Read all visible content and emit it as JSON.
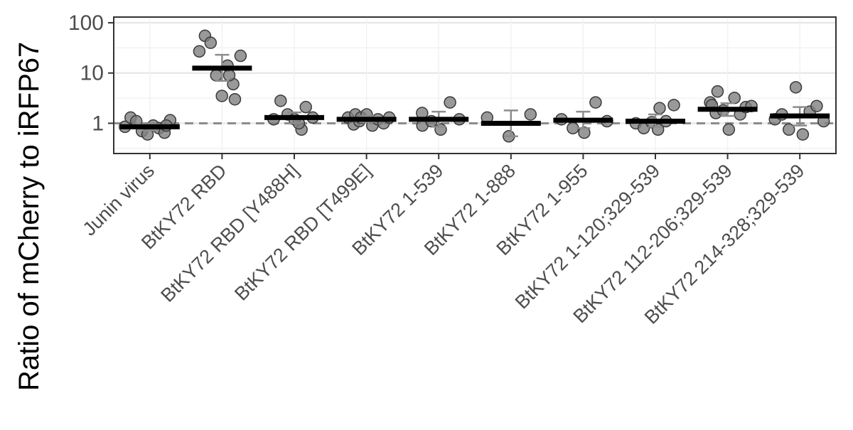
{
  "chart_data": {
    "type": "scatter",
    "title": "",
    "xlabel": "",
    "ylabel": "Ratio of mCherry to iRFP67",
    "y_scale": "log",
    "ylim": [
      0.25,
      130
    ],
    "y_ticks": [
      1,
      10,
      100
    ],
    "y_tick_labels": [
      "1",
      "10",
      "100"
    ],
    "reference_line": 1,
    "grid": true,
    "legend": "none",
    "colors": {
      "point_fill": "#7f7f7f",
      "point_stroke": "#3a3a3a",
      "mean_bar": "#000000",
      "error_bar": "#8c8c8c",
      "reference_line": "#8c8c8c",
      "grid_major": "#e8e8e8",
      "grid_minor": "#f2f2f2"
    },
    "categories": [
      "Junin virus",
      "BtKY72 RBD",
      "BtKY72 RBD [Y488H]",
      "BtKY72 RBD [T499E]",
      "BtKY72 1-539",
      "BtKY72 1-888",
      "BtKY72 1-955",
      "BtKY72 1-120;329-539",
      "BtKY72 112-206;329-539",
      "BtKY72 214-328;329-539"
    ],
    "groups": [
      {
        "category": "Junin virus",
        "mean": 0.85,
        "error": [
          0.72,
          1.0
        ],
        "points": [
          0.85,
          1.3,
          1.1,
          0.7,
          0.6,
          0.9,
          0.8,
          0.65,
          1.15,
          0.9
        ]
      },
      {
        "category": "BtKY72 RBD",
        "mean": 12.5,
        "error": [
          7.0,
          23.0
        ],
        "points": [
          27,
          55,
          40,
          9,
          3.5,
          14,
          6,
          9,
          3.0,
          22
        ]
      },
      {
        "category": "BtKY72 RBD [Y488H]",
        "mean": 1.3,
        "error": [
          1.0,
          1.65
        ],
        "points": [
          1.2,
          2.8,
          1.5,
          1.2,
          0.75,
          1.0,
          2.1,
          1.3
        ]
      },
      {
        "category": "BtKY72 RBD [T499E]",
        "mean": 1.2,
        "error": [
          1.05,
          1.4
        ],
        "points": [
          1.3,
          0.95,
          1.1,
          1.5,
          1.3,
          1.5,
          0.9,
          1.2,
          1.0,
          1.3
        ]
      },
      {
        "category": "BtKY72 1-539",
        "mean": 1.2,
        "error": [
          0.85,
          1.7
        ],
        "points": [
          0.9,
          1.6,
          1.1,
          0.75,
          2.6,
          1.2
        ]
      },
      {
        "category": "BtKY72 1-888",
        "mean": 1.0,
        "error": [
          0.55,
          1.8
        ],
        "points": [
          1.3,
          0.55,
          1.5
        ]
      },
      {
        "category": "BtKY72 1-955",
        "mean": 1.15,
        "error": [
          0.8,
          1.7
        ],
        "points": [
          1.2,
          0.8,
          0.65,
          2.6,
          1.1
        ]
      },
      {
        "category": "BtKY72 1-120;329-539",
        "mean": 1.1,
        "error": [
          0.85,
          1.5
        ],
        "points": [
          1.0,
          0.8,
          1.05,
          2.0,
          0.75,
          1.1,
          2.3
        ]
      },
      {
        "category": "BtKY72 112-206;329-539",
        "mean": 1.9,
        "error": [
          1.4,
          2.5
        ],
        "points": [
          2.6,
          1.6,
          2.3,
          4.3,
          1.8,
          0.75,
          3.2,
          1.5,
          2.1,
          2.2
        ]
      },
      {
        "category": "BtKY72 214-328;329-539",
        "mean": 1.4,
        "error": [
          0.9,
          2.1
        ],
        "points": [
          1.2,
          1.5,
          0.75,
          5.2,
          0.6,
          1.7,
          2.2,
          1.1
        ]
      }
    ]
  }
}
